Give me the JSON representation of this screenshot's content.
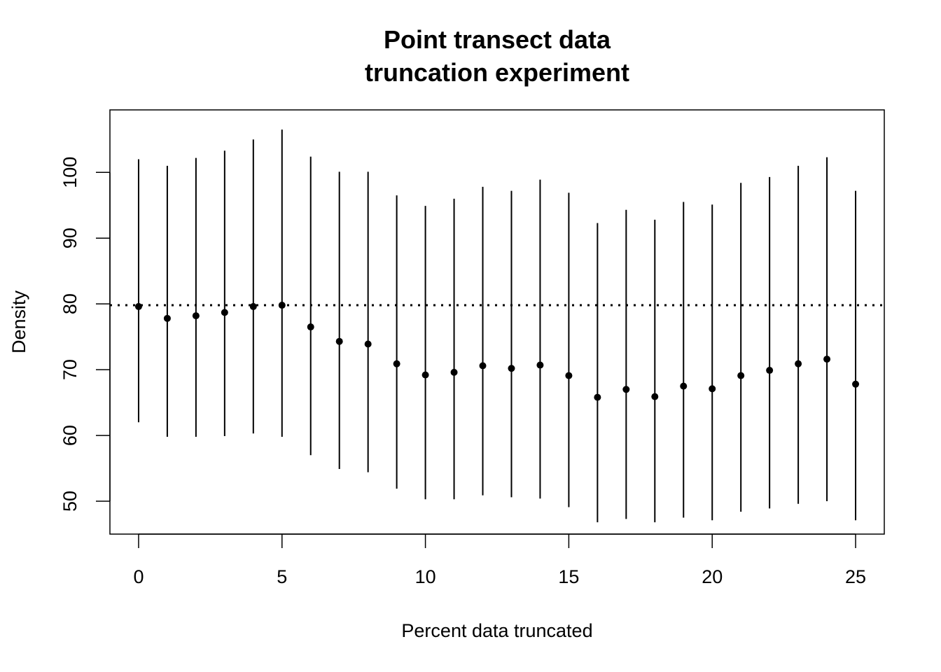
{
  "chart_data": {
    "type": "scatter",
    "title_line1": "Point transect data",
    "title_line2": "truncation experiment",
    "xlabel": "Percent data truncated",
    "ylabel": "Density",
    "xlim": [
      -1,
      26
    ],
    "ylim": [
      45,
      109.5
    ],
    "x_ticks": [
      0,
      5,
      10,
      15,
      20,
      25
    ],
    "y_ticks": [
      50,
      60,
      70,
      80,
      90,
      100
    ],
    "reference_line": 79.8,
    "x": [
      0,
      1,
      2,
      3,
      4,
      5,
      6,
      7,
      8,
      9,
      10,
      11,
      12,
      13,
      14,
      15,
      16,
      17,
      18,
      19,
      20,
      21,
      22,
      23,
      24,
      25
    ],
    "estimate": [
      79.6,
      77.8,
      78.2,
      78.7,
      79.6,
      79.8,
      76.5,
      74.3,
      73.9,
      70.9,
      69.2,
      69.6,
      70.6,
      70.2,
      70.7,
      69.1,
      65.8,
      67.0,
      65.9,
      67.5,
      67.1,
      69.1,
      69.9,
      70.9,
      71.6,
      67.8
    ],
    "lower": [
      62.0,
      59.8,
      59.8,
      59.9,
      60.3,
      59.8,
      57.0,
      54.9,
      54.4,
      51.9,
      50.3,
      50.3,
      50.9,
      50.6,
      50.4,
      49.1,
      46.8,
      47.3,
      46.8,
      47.5,
      47.1,
      48.4,
      48.9,
      49.6,
      50.0,
      47.1
    ],
    "upper": [
      102.0,
      101.0,
      102.2,
      103.3,
      105.0,
      106.5,
      102.4,
      100.1,
      100.1,
      96.5,
      94.9,
      96.0,
      97.8,
      97.2,
      98.9,
      96.9,
      92.3,
      94.3,
      92.8,
      95.5,
      95.1,
      98.4,
      99.3,
      101.0,
      102.3,
      97.2
    ],
    "colors": {
      "points": "#000000",
      "bars": "#000000",
      "reference": "#000000",
      "frame": "#000000"
    }
  }
}
